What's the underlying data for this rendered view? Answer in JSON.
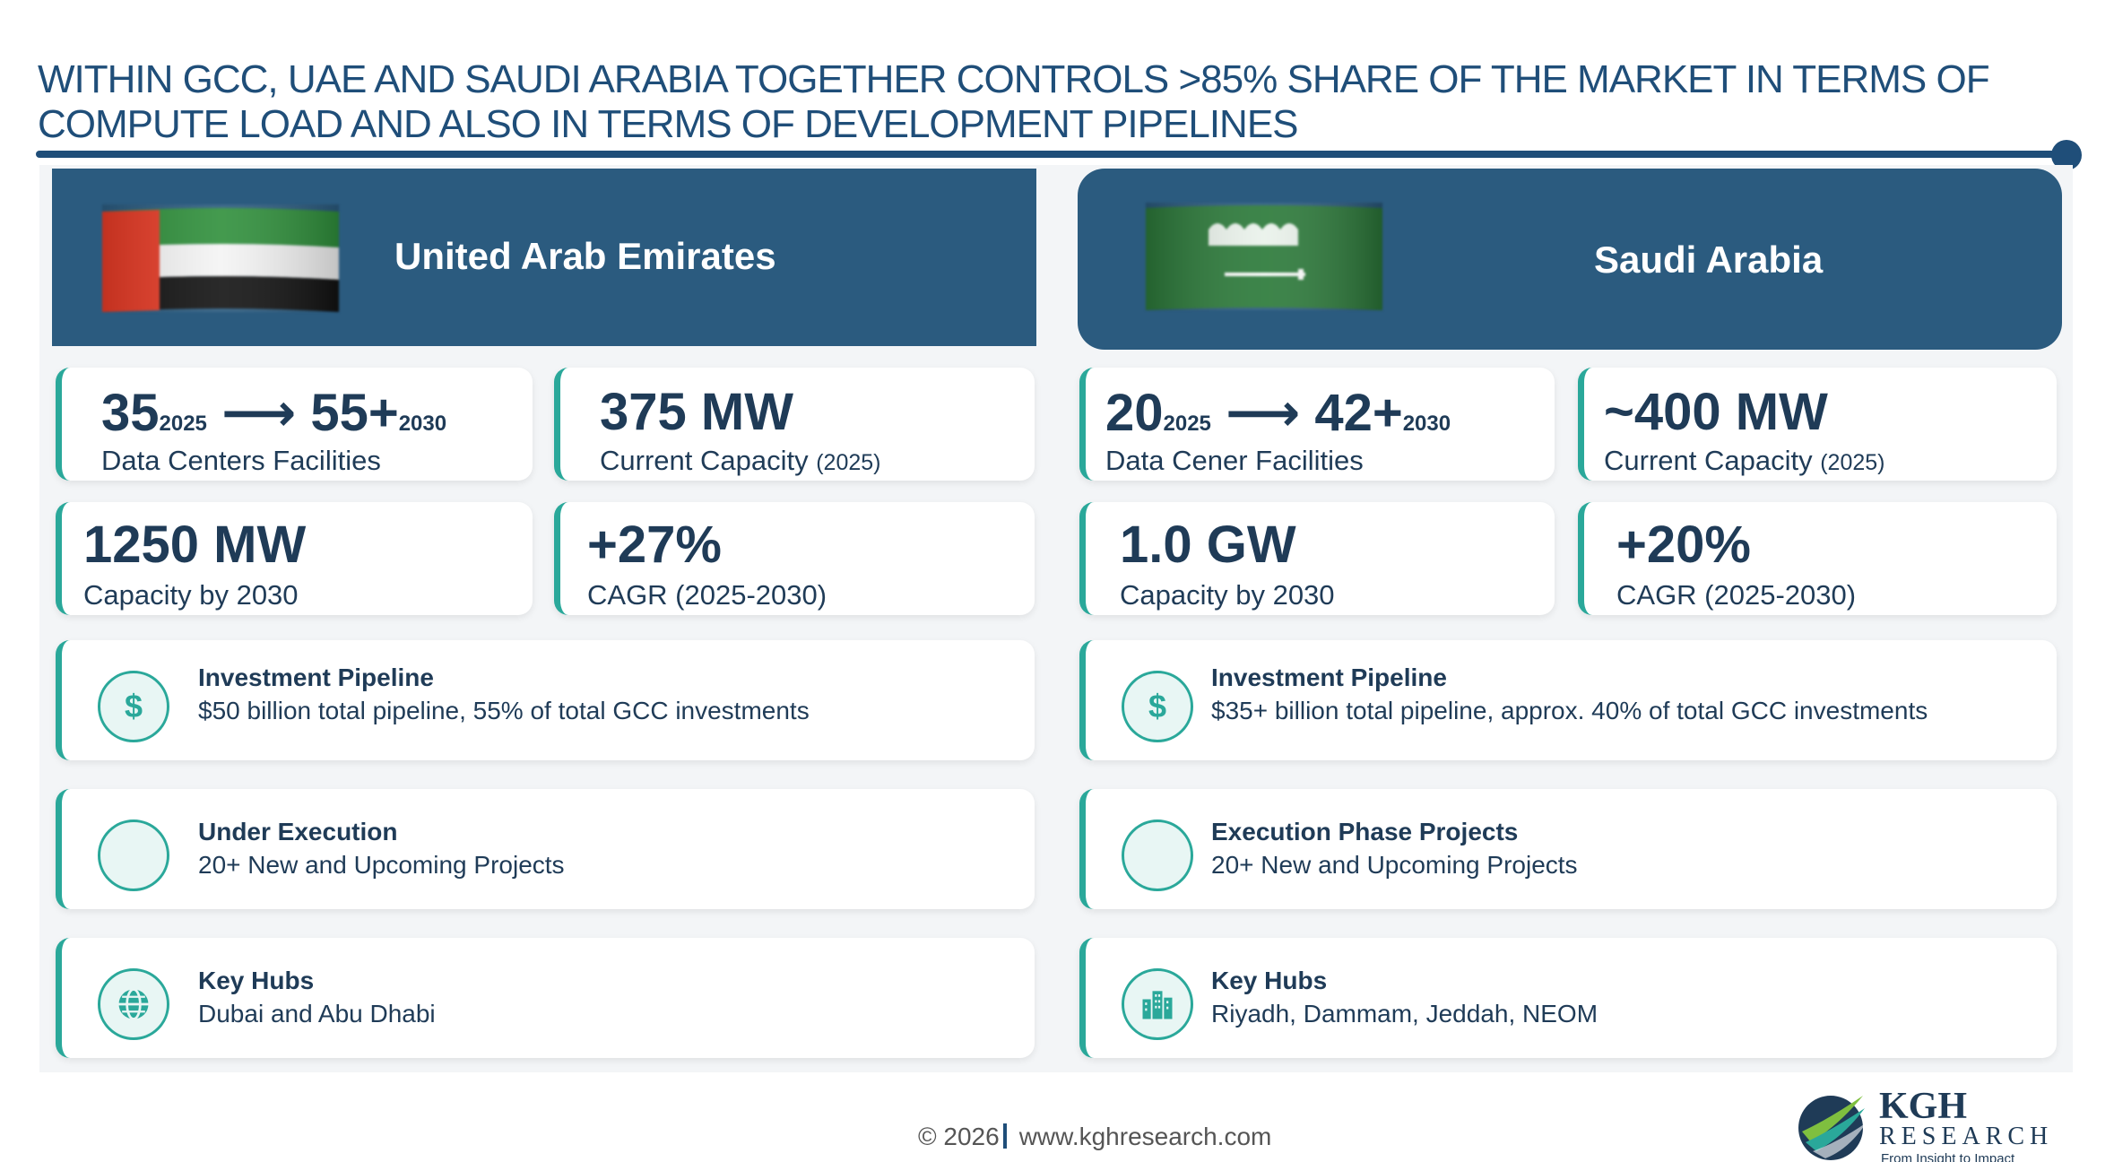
{
  "title": "WITHIN GCC, UAE AND SAUDI ARABIA TOGETHER CONTROLS >85% SHARE OF THE MARKET IN TERMS OF COMPUTE LOAD AND ALSO IN TERMS OF DEVELOPMENT PIPELINES",
  "colors": {
    "navy": "#1f4e79",
    "header": "#2b5b7f",
    "teal": "#2aa89a"
  },
  "uae": {
    "name": "United Arab Emirates",
    "flag_icon": "uae-flag-icon",
    "facilities": {
      "from": "35",
      "from_year": "2025",
      "arrow": "⟶",
      "to": "55+",
      "to_year": "2030",
      "label": "Data Centers Facilities"
    },
    "current_capacity": {
      "value": "375 MW",
      "label": "Current Capacity",
      "note": "(2025)"
    },
    "capacity_2030": {
      "value": "1250 MW",
      "label": "Capacity by 2030"
    },
    "cagr": {
      "value": "+27%",
      "label": "CAGR (2025-2030)"
    },
    "investment": {
      "icon": "dollar-icon",
      "heading": "Investment Pipeline",
      "text": "$50 billion total pipeline, 55% of total GCC investments"
    },
    "execution": {
      "icon": "blank-circle-icon",
      "heading": "Under Execution",
      "text": "20+ New and Upcoming Projects"
    },
    "hubs": {
      "icon": "globe-icon",
      "heading": "Key Hubs",
      "text": "Dubai and Abu Dhabi"
    }
  },
  "ksa": {
    "name": "Saudi Arabia",
    "flag_icon": "saudi-flag-icon",
    "facilities": {
      "from": "20",
      "from_year": "2025",
      "arrow": "⟶",
      "to": "42+",
      "to_year": "2030",
      "label": "Data Cener Facilities"
    },
    "current_capacity": {
      "value": "~400 MW",
      "label": "Current Capacity",
      "note": "(2025)"
    },
    "capacity_2030": {
      "value": "1.0 GW",
      "label": "Capacity by 2030"
    },
    "cagr": {
      "value": "+20%",
      "label": "CAGR (2025-2030)"
    },
    "investment": {
      "icon": "dollar-icon",
      "heading": "Investment Pipeline",
      "text": "$35+ billion total pipeline, approx. 40% of total GCC investments"
    },
    "execution": {
      "icon": "blank-circle-icon",
      "heading": "Execution Phase Projects",
      "text": "20+ New and Upcoming Projects"
    },
    "hubs": {
      "icon": "city-icon",
      "heading": "Key Hubs",
      "text": "Riyadh, Dammam, Jeddah, NEOM"
    }
  },
  "footer": {
    "copyright": "© 2026",
    "website": "www.kghresearch.com"
  },
  "logo": {
    "name": "KGH",
    "sub": "RESEARCH",
    "tagline": "From Insight to Impact"
  }
}
